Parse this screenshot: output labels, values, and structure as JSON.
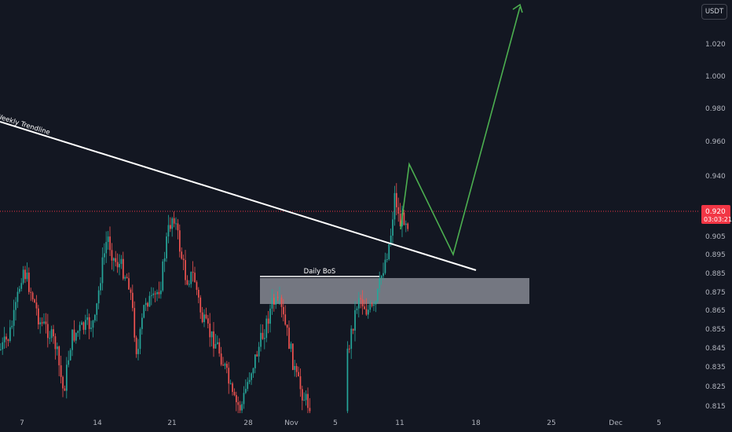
{
  "currency": "USDT",
  "colors": {
    "background": "#131722",
    "bull": "#26a69a",
    "bear": "#ef5350",
    "trendline": "#ffffff",
    "projection": "#4caf50",
    "zone": "#9598a1",
    "last_price": "#f23645"
  },
  "last_price": {
    "value": "0.920",
    "countdown": "03:03:21"
  },
  "annotations": {
    "trendline_label": "Weekly Trendline",
    "bos_label": "Daily BoS"
  },
  "chart_data": {
    "type": "candlestick",
    "price_axis": {
      "ticks": [
        "1.020",
        "1.000",
        "0.980",
        "0.960",
        "0.940",
        "0.905",
        "0.895",
        "0.885",
        "0.875",
        "0.865",
        "0.855",
        "0.845",
        "0.835",
        "0.825",
        "0.815"
      ]
    },
    "time_axis": {
      "ticks": [
        "7",
        "14",
        "21",
        "28",
        "Nov",
        "5",
        "11",
        "18",
        "25",
        "Dec",
        "5"
      ]
    }
  }
}
